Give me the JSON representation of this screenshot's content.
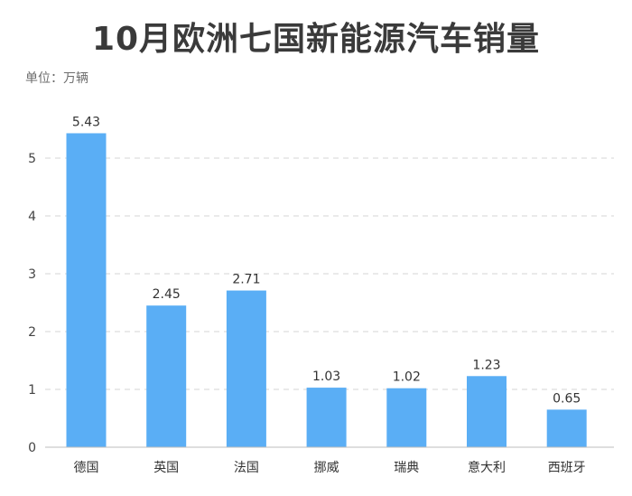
{
  "chart_data": {
    "type": "bar",
    "title": "10月欧洲七国新能源汽车销量",
    "unit_label": "单位：万辆",
    "categories": [
      "德国",
      "英国",
      "法国",
      "挪威",
      "瑞典",
      "意大利",
      "西班牙"
    ],
    "values": [
      5.43,
      2.45,
      2.71,
      1.03,
      1.02,
      1.23,
      0.65
    ],
    "value_labels": [
      "5.43",
      "2.45",
      "2.71",
      "1.03",
      "1.02",
      "1.23",
      "0.65"
    ],
    "yticks": [
      0,
      1,
      2,
      3,
      4,
      5
    ],
    "ylim": [
      0,
      5.5
    ],
    "grid": true,
    "grid_style": "dashed",
    "bar_color": "#5aaef5",
    "grid_color": "#d4d4d4",
    "axis_color": "#bdbdbd"
  }
}
